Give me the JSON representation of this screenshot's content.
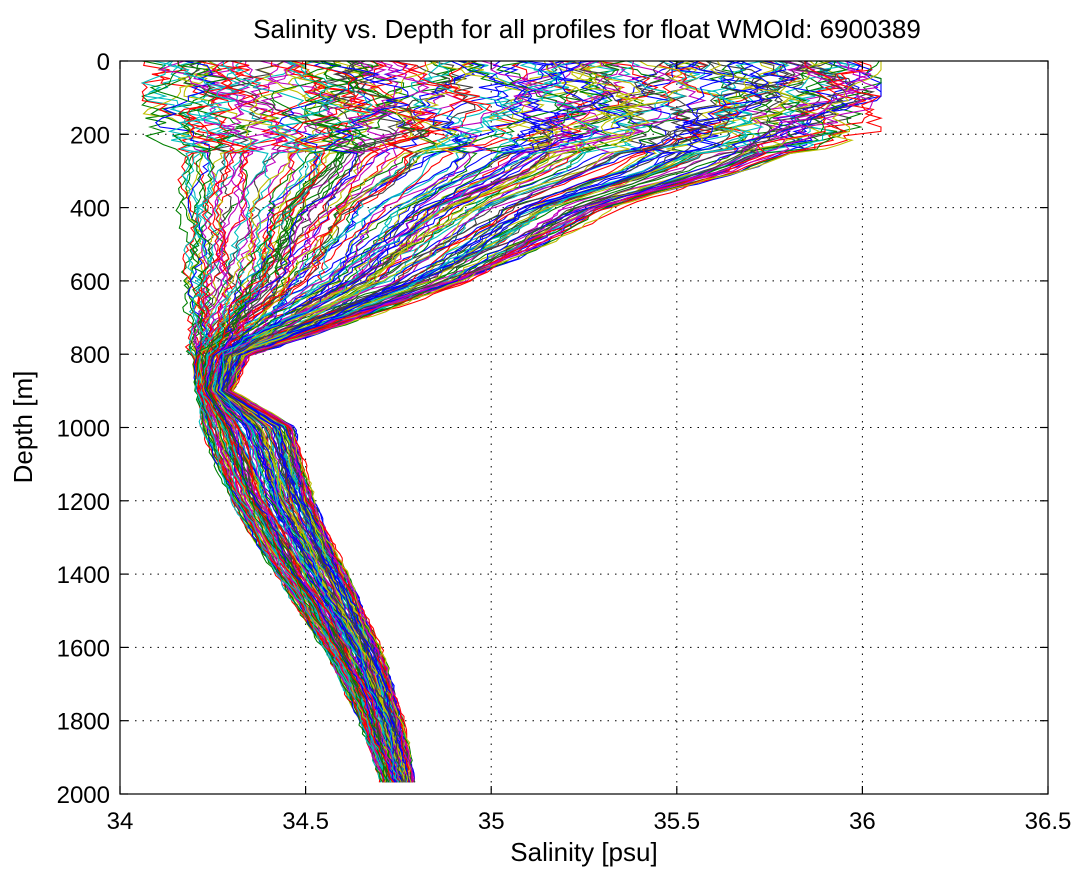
{
  "chart_data": {
    "type": "line",
    "title": "Salinity vs. Depth for all profiles for float WMOId: 6900389",
    "xlabel": "Salinity [psu]",
    "ylabel": "Depth [m]",
    "xlim": [
      34,
      36.5
    ],
    "ylim": [
      0,
      2000
    ],
    "y_axis_inverted": true,
    "grid": true,
    "grid_style": "dotted",
    "legend": "none",
    "x_ticks": [
      34,
      34.5,
      35,
      35.5,
      36,
      36.5
    ],
    "x_tick_labels": [
      "34",
      "34.5",
      "35",
      "35.5",
      "36",
      "36.5"
    ],
    "y_ticks": [
      0,
      200,
      400,
      600,
      800,
      1000,
      1200,
      1400,
      1600,
      1800,
      2000
    ],
    "y_tick_labels": [
      "0",
      "200",
      "400",
      "600",
      "800",
      "1000",
      "1200",
      "1400",
      "1600",
      "1800",
      "2000"
    ],
    "colors": [
      "#0000ff",
      "#008000",
      "#ff0000",
      "#00bfbf",
      "#bf00bf",
      "#bfbf00",
      "#404040"
    ],
    "profile_count": 180,
    "series_envelope": {
      "depth": [
        0,
        100,
        200,
        300,
        400,
        500,
        600,
        700,
        800,
        900,
        1000,
        1200,
        1400,
        1600,
        1800,
        1975
      ],
      "salinity_min": [
        34.08,
        34.1,
        34.14,
        34.15,
        34.16,
        34.17,
        34.18,
        34.19,
        34.2,
        34.21,
        34.22,
        34.3,
        34.42,
        34.55,
        34.65,
        34.71
      ],
      "salinity_max": [
        36.0,
        36.05,
        35.95,
        35.7,
        35.35,
        35.15,
        34.95,
        34.65,
        34.35,
        34.3,
        34.47,
        34.52,
        34.61,
        34.7,
        34.76,
        34.79
      ]
    },
    "representative_profiles": [
      {
        "depth": [
          0,
          100,
          200,
          300,
          400,
          500,
          600,
          700,
          800,
          900,
          1000,
          1200,
          1400,
          1600,
          1800,
          1975
        ],
        "salinity": [
          35.9,
          35.95,
          35.8,
          35.6,
          35.35,
          35.15,
          34.9,
          34.6,
          34.35,
          34.28,
          34.3,
          34.38,
          34.47,
          34.58,
          34.68,
          34.75
        ]
      },
      {
        "depth": [
          0,
          100,
          200,
          300,
          400,
          500,
          600,
          700,
          800,
          900,
          1000,
          1200,
          1400,
          1600,
          1800,
          1975
        ],
        "salinity": [
          35.6,
          35.55,
          35.35,
          35.0,
          34.75,
          34.55,
          34.42,
          34.32,
          34.26,
          34.25,
          34.27,
          34.36,
          34.46,
          34.57,
          34.67,
          34.74
        ]
      },
      {
        "depth": [
          0,
          100,
          200,
          300,
          400,
          500,
          600,
          700,
          800,
          900,
          1000,
          1200,
          1400,
          1600,
          1800,
          1975
        ],
        "salinity": [
          34.9,
          34.85,
          34.7,
          34.5,
          34.35,
          34.28,
          34.24,
          34.22,
          34.22,
          34.23,
          34.25,
          34.34,
          34.45,
          34.56,
          34.66,
          34.73
        ]
      },
      {
        "depth": [
          0,
          100,
          200,
          300,
          400,
          500,
          600,
          700,
          800,
          900,
          1000,
          1200,
          1400,
          1600,
          1800,
          1975
        ],
        "salinity": [
          34.15,
          34.2,
          34.18,
          34.17,
          34.17,
          34.18,
          34.19,
          34.2,
          34.21,
          34.22,
          34.24,
          34.32,
          34.43,
          34.55,
          34.65,
          34.72
        ]
      }
    ]
  }
}
